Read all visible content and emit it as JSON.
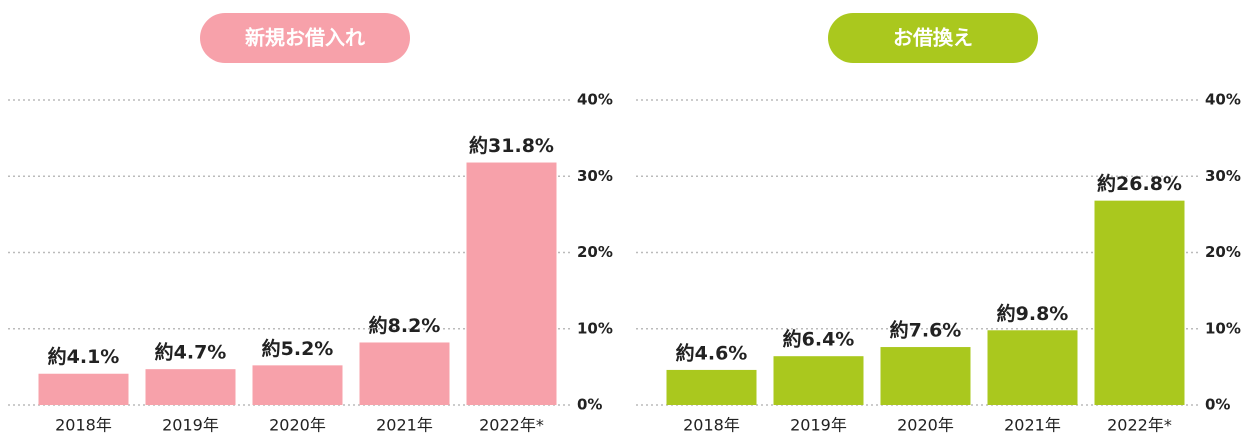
{
  "chart_data": [
    {
      "type": "bar",
      "title": "新規お借入れ",
      "color": "#f7a1aa",
      "title_color": "#f7a1aa",
      "categories": [
        "2018年",
        "2019年",
        "2020年",
        "2021年",
        "2022年*"
      ],
      "values": [
        4.1,
        4.7,
        5.2,
        8.2,
        31.8
      ],
      "value_labels": [
        "約4.1%",
        "約4.7%",
        "約5.2%",
        "約8.2%",
        "約31.8%"
      ],
      "ylim": [
        0,
        40
      ],
      "yticks": [
        {
          "value": 0,
          "label": "0%"
        },
        {
          "value": 10,
          "label": "10%"
        },
        {
          "value": 20,
          "label": "20%"
        },
        {
          "value": 30,
          "label": "30%"
        },
        {
          "value": 40,
          "label": "40%"
        }
      ],
      "grid": true
    },
    {
      "type": "bar",
      "title": "お借換え",
      "color": "#aac81e",
      "title_color": "#aac81e",
      "categories": [
        "2018年",
        "2019年",
        "2020年",
        "2021年",
        "2022年*"
      ],
      "values": [
        4.6,
        6.4,
        7.6,
        9.8,
        26.8
      ],
      "value_labels": [
        "約4.6%",
        "約6.4%",
        "約7.6%",
        "約9.8%",
        "約26.8%"
      ],
      "ylim": [
        0,
        40
      ],
      "yticks": [
        {
          "value": 0,
          "label": "0%"
        },
        {
          "value": 10,
          "label": "10%"
        },
        {
          "value": 20,
          "label": "20%"
        },
        {
          "value": 30,
          "label": "30%"
        },
        {
          "value": 40,
          "label": "40%"
        }
      ],
      "grid": true
    }
  ]
}
